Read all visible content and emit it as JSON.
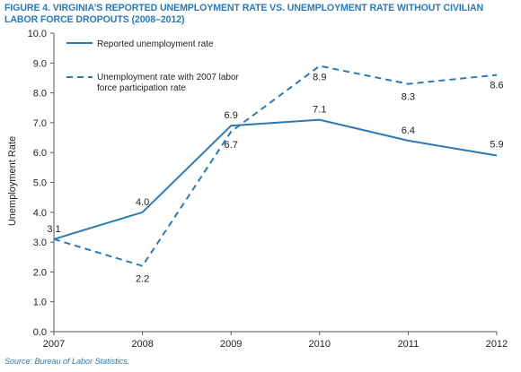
{
  "figure": {
    "title": "FIGURE 4. VIRGINIA’S REPORTED UNEMPLOYMENT RATE VS. UNEMPLOYMENT RATE WITHOUT CIVILIAN LABOR FORCE DROPOUTS (2008–2012)",
    "source": "Source: Bureau of Labor Statistics."
  },
  "chart_data": {
    "type": "line",
    "title": "FIGURE 4. VIRGINIA’S REPORTED UNEMPLOYMENT RATE VS. UNEMPLOYMENT RATE WITHOUT CIVILIAN LABOR FORCE DROPOUTS (2008–2012)",
    "x": [
      "2007",
      "2008",
      "2009",
      "2010",
      "2011",
      "2012"
    ],
    "xlabel": "",
    "ylabel": "Unemployment Rate",
    "ylim": [
      0,
      10
    ],
    "yticks": [
      "0.0",
      "1.0",
      "2.0",
      "3.0",
      "4.0",
      "5.0",
      "6.0",
      "7.0",
      "8.0",
      "9.0",
      "10.0"
    ],
    "grid": false,
    "legend_position": "top-left",
    "series": [
      {
        "name": "Reported unemployment rate",
        "style": "solid",
        "color": "#2a7ab8",
        "values": [
          3.1,
          4.0,
          6.9,
          7.1,
          6.4,
          5.9
        ],
        "labels": [
          "3.1",
          "4.0",
          "6.9",
          "7.1",
          "6.4",
          "5.9"
        ]
      },
      {
        "name": "Unemployment rate with 2007 labor force participation rate",
        "legend_lines": [
          "Unemployment rate with 2007 labor",
          "force participation rate"
        ],
        "style": "dashed",
        "color": "#2a7ab8",
        "values": [
          3.1,
          2.2,
          6.7,
          8.9,
          8.3,
          8.6
        ],
        "labels": [
          "",
          "2.2",
          "6.7",
          "8.9",
          "8.3",
          "8.6"
        ]
      }
    ]
  }
}
